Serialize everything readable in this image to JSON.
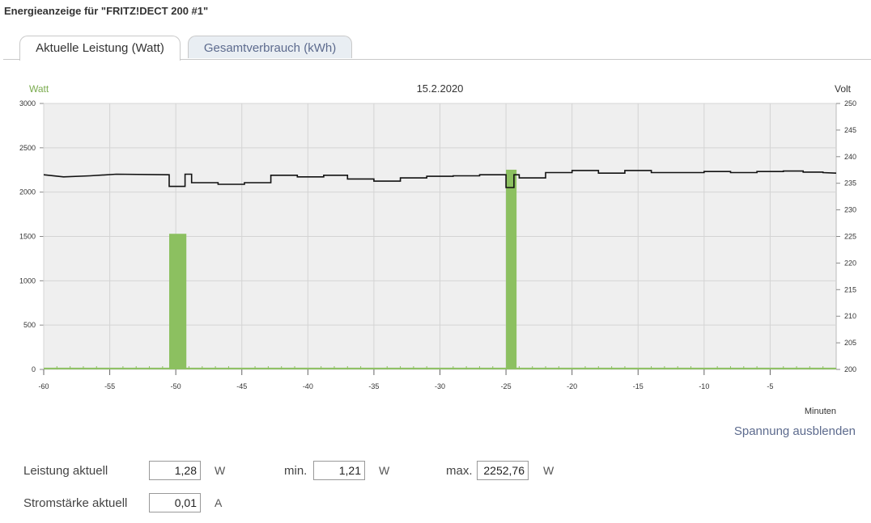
{
  "title": "Energieanzeige für \"FRITZ!DECT 200 #1\"",
  "tabs": [
    {
      "label": "Aktuelle Leistung (Watt)",
      "active": true
    },
    {
      "label": "Gesamtverbrauch (kWh)",
      "active": false
    }
  ],
  "toggle_voltage_label": "Spannung ausblenden",
  "stats": {
    "power_label": "Leistung aktuell",
    "power_value": "1,28",
    "power_unit": "W",
    "min_label": "min.",
    "min_value": "1,21",
    "min_unit": "W",
    "max_label": "max.",
    "max_value": "2252,76",
    "max_unit": "W",
    "current_label": "Stromstärke aktuell",
    "current_value": "0,01",
    "current_unit": "A"
  },
  "colors": {
    "power": "#8cc060",
    "voltage": "#111111",
    "plot_bg": "#efefef",
    "link": "#5d6b8e"
  },
  "chart_data": {
    "type": "bar",
    "title": "15.2.2020",
    "y_left_label": "Watt",
    "y_right_label": "Volt",
    "x_label": "Minuten",
    "x_range": [
      -60,
      0
    ],
    "x_ticks": [
      -60,
      -55,
      -50,
      -45,
      -40,
      -35,
      -30,
      -25,
      -20,
      -15,
      -10,
      -5
    ],
    "y_left_range": [
      0,
      3000
    ],
    "y_left_ticks": [
      0,
      500,
      1000,
      1500,
      2000,
      2500,
      3000
    ],
    "y_right_range": [
      200,
      250
    ],
    "y_right_ticks": [
      200,
      205,
      210,
      215,
      220,
      225,
      230,
      235,
      240,
      245,
      250
    ],
    "grid": true,
    "series": [
      {
        "name": "Watt",
        "type": "bar",
        "bars": [
          {
            "x_start": -50.5,
            "x_end": -49.2,
            "value": 1530
          },
          {
            "x_start": -25.0,
            "x_end": -24.2,
            "value": 2252.76
          }
        ],
        "baseline_value": 1.28
      },
      {
        "name": "Volt",
        "type": "step",
        "points": [
          [
            -60,
            236.6
          ],
          [
            -58.5,
            236.2
          ],
          [
            -56.5,
            236.4
          ],
          [
            -54.5,
            236.7
          ],
          [
            -50.5,
            236.6
          ],
          [
            -50.5,
            234.4
          ],
          [
            -49.3,
            234.4
          ],
          [
            -49.3,
            236.7
          ],
          [
            -48.8,
            236.7
          ],
          [
            -48.8,
            235.1
          ],
          [
            -46.8,
            235.1
          ],
          [
            -46.8,
            234.8
          ],
          [
            -44.8,
            234.8
          ],
          [
            -44.8,
            235.1
          ],
          [
            -42.8,
            235.1
          ],
          [
            -42.8,
            236.5
          ],
          [
            -40.8,
            236.5
          ],
          [
            -40.8,
            236.2
          ],
          [
            -38.8,
            236.2
          ],
          [
            -38.8,
            236.5
          ],
          [
            -37.0,
            236.5
          ],
          [
            -37.0,
            235.8
          ],
          [
            -35.0,
            235.8
          ],
          [
            -35.0,
            235.4
          ],
          [
            -33.0,
            235.4
          ],
          [
            -33.0,
            236.0
          ],
          [
            -31.0,
            236.0
          ],
          [
            -31.0,
            236.3
          ],
          [
            -29.0,
            236.3
          ],
          [
            -29.0,
            236.4
          ],
          [
            -27.0,
            236.4
          ],
          [
            -27.0,
            236.6
          ],
          [
            -25.0,
            236.6
          ],
          [
            -25.0,
            234.2
          ],
          [
            -24.4,
            234.2
          ],
          [
            -24.4,
            236.6
          ],
          [
            -24.0,
            236.6
          ],
          [
            -24.0,
            236.0
          ],
          [
            -22.0,
            236.0
          ],
          [
            -22.0,
            237.0
          ],
          [
            -20.0,
            237.0
          ],
          [
            -20.0,
            237.4
          ],
          [
            -18.0,
            237.4
          ],
          [
            -18.0,
            236.9
          ],
          [
            -16.0,
            236.9
          ],
          [
            -16.0,
            237.4
          ],
          [
            -14.0,
            237.4
          ],
          [
            -14.0,
            237.0
          ],
          [
            -12.0,
            237.0
          ],
          [
            -12.0,
            237.0
          ],
          [
            -10.0,
            237.0
          ],
          [
            -10.0,
            237.2
          ],
          [
            -8.0,
            237.2
          ],
          [
            -8.0,
            237.0
          ],
          [
            -6.0,
            237.0
          ],
          [
            -6.0,
            237.2
          ],
          [
            -4.0,
            237.2
          ],
          [
            -4.0,
            237.3
          ],
          [
            -2.5,
            237.3
          ],
          [
            -2.5,
            237.1
          ],
          [
            -1.0,
            237.1
          ],
          [
            -1.0,
            237.0
          ],
          [
            0,
            236.9
          ]
        ]
      }
    ]
  }
}
